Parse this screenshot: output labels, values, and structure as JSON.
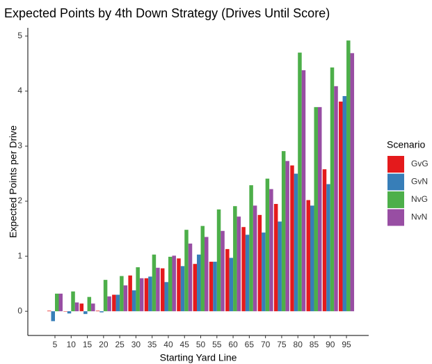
{
  "chart_data": {
    "type": "bar",
    "title": "Expected Points by 4th Down Strategy (Drives Until Score)",
    "xlabel": "Starting Yard Line",
    "ylabel": "Expected Points per Drive",
    "legend_title": "Scenario",
    "categories": [
      "5",
      "10",
      "15",
      "20",
      "25",
      "30",
      "35",
      "40",
      "45",
      "50",
      "55",
      "60",
      "65",
      "70",
      "75",
      "80",
      "85",
      "90",
      "95"
    ],
    "series": [
      {
        "name": "GvG",
        "color": "#e41a1c",
        "values": [
          0.01,
          0,
          0.14,
          0.01,
          0.3,
          0.65,
          0.6,
          0.78,
          0.96,
          0.86,
          0.9,
          1.13,
          1.53,
          1.75,
          1.95,
          2.65,
          2.02,
          2.58,
          3.81
        ]
      },
      {
        "name": "GvN",
        "color": "#377eb8",
        "values": [
          -0.18,
          -0.04,
          -0.05,
          -0.02,
          0.3,
          0.38,
          0.63,
          0.53,
          0.82,
          1.03,
          0.9,
          0.97,
          1.39,
          1.43,
          1.63,
          2.5,
          1.92,
          2.31,
          3.91
        ]
      },
      {
        "name": "NvG",
        "color": "#4daf4a",
        "values": [
          0.32,
          0.36,
          0.26,
          0.57,
          0.64,
          0.8,
          1.03,
          0.99,
          1.48,
          1.55,
          1.85,
          1.91,
          2.29,
          2.41,
          2.91,
          4.7,
          3.71,
          4.43,
          4.92
        ]
      },
      {
        "name": "NvN",
        "color": "#984ea3",
        "values": [
          0.32,
          0.16,
          0.14,
          0.27,
          0.47,
          0.6,
          0.79,
          1.01,
          1.23,
          1.35,
          1.46,
          1.72,
          1.92,
          2.22,
          2.73,
          4.38,
          3.71,
          4.09,
          4.69
        ]
      }
    ],
    "ylim": [
      -0.44,
      5.15
    ],
    "yticks": [
      0,
      1,
      2,
      3,
      4,
      5
    ],
    "grid": false,
    "legend": "right"
  }
}
